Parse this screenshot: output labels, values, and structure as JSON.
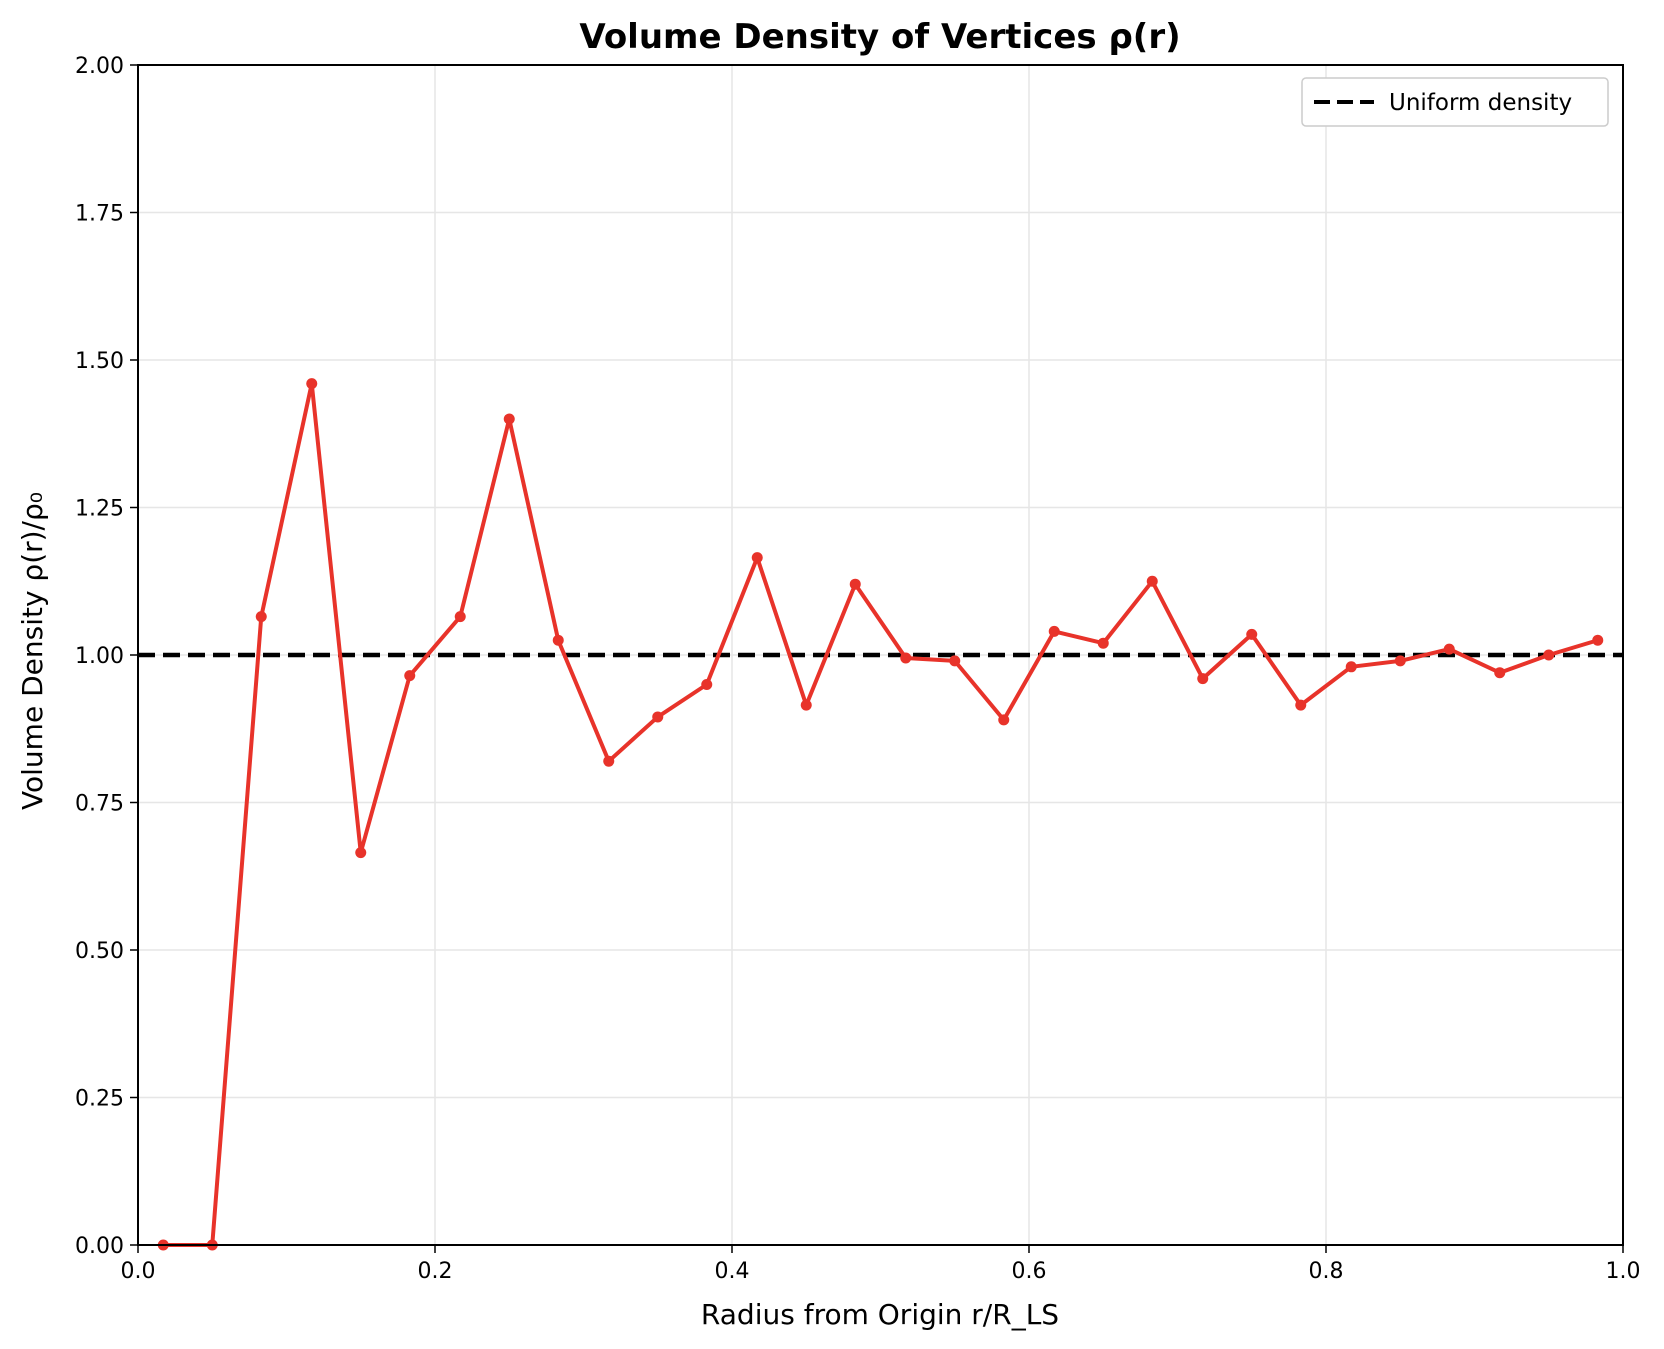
{
  "chart_data": {
    "type": "line",
    "title": "Volume Density of Vertices ρ(r)",
    "xlabel": "Radius from Origin r/R_LS",
    "ylabel": "Volume Density ρ(r)/ρ₀",
    "xlim": [
      0.0,
      1.0
    ],
    "ylim": [
      0.0,
      2.0
    ],
    "grid": true,
    "legend_position": "top-right",
    "x_ticks": [
      "0.0",
      "0.2",
      "0.4",
      "0.6",
      "0.8",
      "1.0"
    ],
    "x_tick_values": [
      0.0,
      0.2,
      0.4,
      0.6,
      0.8,
      1.0
    ],
    "y_ticks": [
      "0.00",
      "0.25",
      "0.50",
      "0.75",
      "1.00",
      "1.25",
      "1.50",
      "1.75",
      "2.00"
    ],
    "y_tick_values": [
      0.0,
      0.25,
      0.5,
      0.75,
      1.0,
      1.25,
      1.5,
      1.75,
      2.0
    ],
    "series": [
      {
        "color": "#e8332a",
        "marker": "circle",
        "x": [
          0.017,
          0.05,
          0.083,
          0.117,
          0.15,
          0.183,
          0.217,
          0.25,
          0.283,
          0.317,
          0.35,
          0.383,
          0.417,
          0.45,
          0.483,
          0.517,
          0.55,
          0.583,
          0.617,
          0.65,
          0.683,
          0.717,
          0.75,
          0.783,
          0.817,
          0.85,
          0.883,
          0.917,
          0.95,
          0.983
        ],
        "y": [
          0.0,
          0.0,
          1.065,
          1.46,
          0.665,
          0.965,
          1.065,
          1.4,
          1.025,
          0.82,
          0.895,
          0.95,
          1.165,
          0.915,
          1.12,
          0.995,
          0.99,
          0.89,
          1.04,
          1.02,
          1.125,
          0.96,
          1.035,
          0.915,
          0.98,
          0.99,
          1.01,
          0.97,
          1.0,
          1.025
        ]
      }
    ],
    "reference_lines": [
      {
        "name": "Uniform density",
        "y": 1.0,
        "color": "#000000",
        "style": "dashed"
      }
    ]
  }
}
